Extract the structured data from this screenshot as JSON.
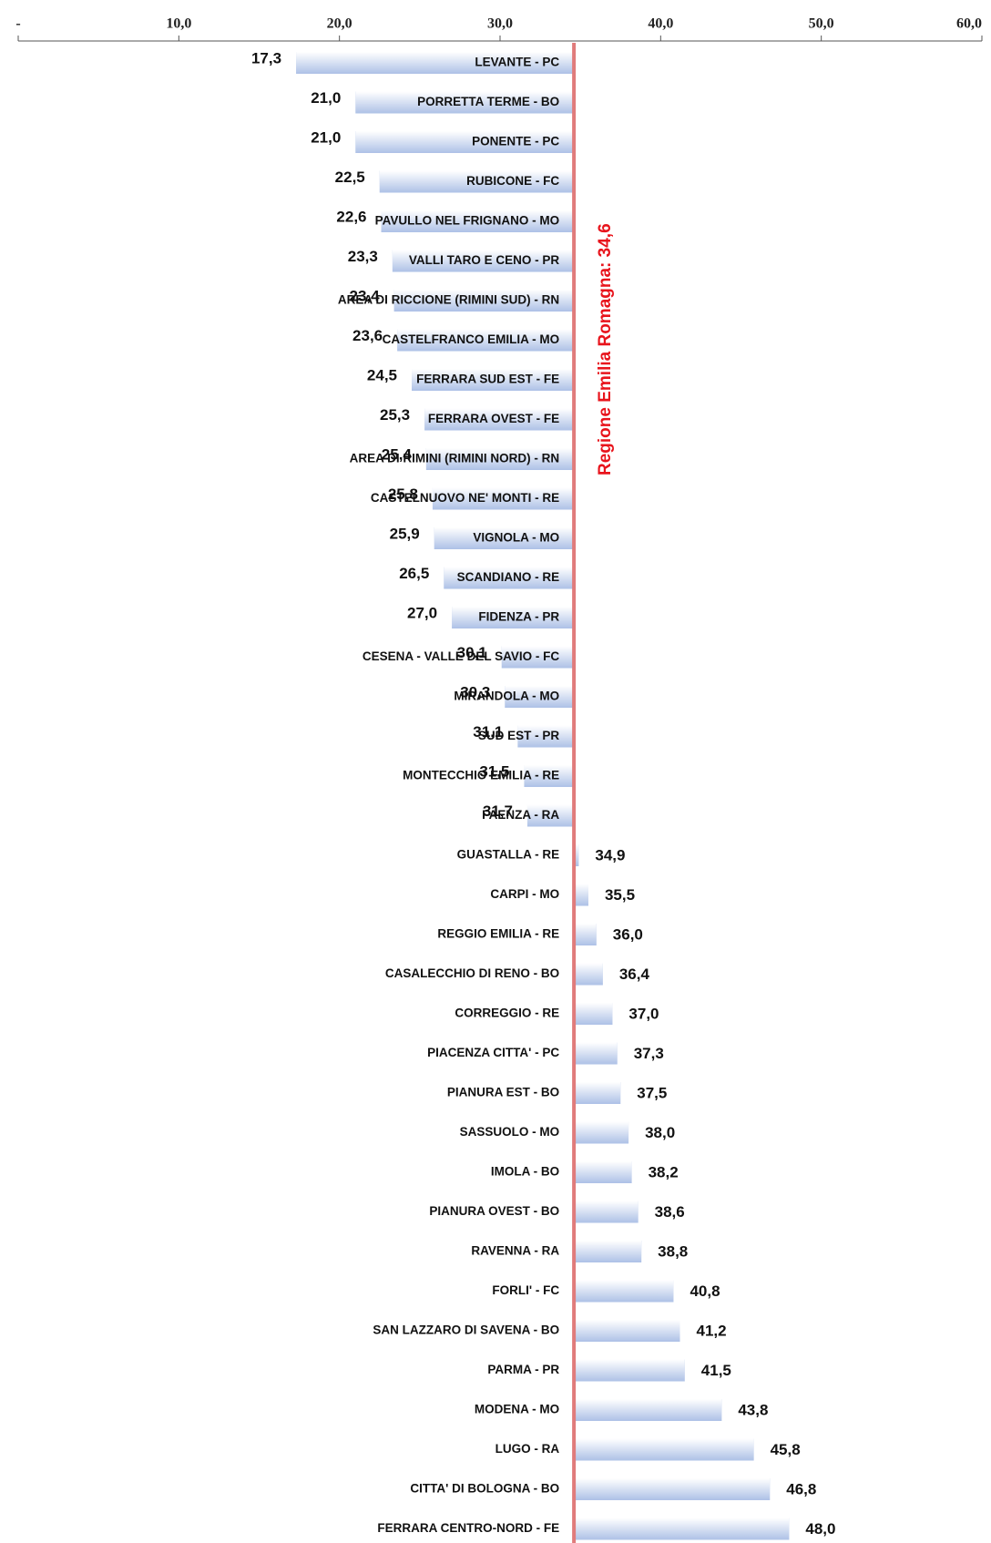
{
  "chart_data": {
    "type": "bar",
    "orientation": "horizontal",
    "categories": [
      "LEVANTE - PC",
      "PORRETTA TERME - BO",
      "PONENTE - PC",
      "RUBICONE - FC",
      "PAVULLO NEL FRIGNANO - MO",
      "VALLI TARO E CENO - PR",
      "AREA DI RICCIONE (RIMINI SUD) - RN",
      "CASTELFRANCO EMILIA - MO",
      "FERRARA SUD EST - FE",
      "FERRARA OVEST - FE",
      "AREA DI RIMINI (RIMINI NORD) - RN",
      "CASTELNUOVO NE' MONTI - RE",
      "VIGNOLA - MO",
      "SCANDIANO - RE",
      "FIDENZA - PR",
      "CESENA - VALLE DEL SAVIO - FC",
      "MIRANDOLA - MO",
      "SUD EST - PR",
      "MONTECCHIO EMILIA - RE",
      "FAENZA - RA",
      "GUASTALLA - RE",
      "CARPI - MO",
      "REGGIO EMILIA - RE",
      "CASALECCHIO DI RENO - BO",
      "CORREGGIO - RE",
      "PIACENZA CITTA' - PC",
      "PIANURA EST - BO",
      "SASSUOLO - MO",
      "IMOLA - BO",
      "PIANURA OVEST - BO",
      "RAVENNA - RA",
      "FORLI' - FC",
      "SAN LAZZARO DI SAVENA - BO",
      "PARMA - PR",
      "MODENA - MO",
      "LUGO - RA",
      "CITTA' DI BOLOGNA - BO",
      "FERRARA CENTRO-NORD - FE"
    ],
    "values": [
      17.3,
      21.0,
      21.0,
      22.5,
      22.6,
      23.3,
      23.4,
      23.6,
      24.5,
      25.3,
      25.4,
      25.8,
      25.9,
      26.5,
      27.0,
      30.1,
      30.3,
      31.1,
      31.5,
      31.7,
      34.9,
      35.5,
      36.0,
      36.4,
      37.0,
      37.3,
      37.5,
      38.0,
      38.2,
      38.6,
      38.8,
      40.8,
      41.2,
      41.5,
      43.8,
      45.8,
      46.8,
      48.0
    ],
    "value_labels": [
      "17,3",
      "21,0",
      "21,0",
      "22,5",
      "22,6",
      "23,3",
      "23,4",
      "23,6",
      "24,5",
      "25,3",
      "25,4",
      "25,8",
      "25,9",
      "26,5",
      "27,0",
      "30,1",
      "30,3",
      "31,1",
      "31,5",
      "31,7",
      "34,9",
      "35,5",
      "36,0",
      "36,4",
      "37,0",
      "37,3",
      "37,5",
      "38,0",
      "38,2",
      "38,6",
      "38,8",
      "40,8",
      "41,2",
      "41,5",
      "43,8",
      "45,8",
      "46,8",
      "48,0"
    ],
    "color": "#9fb6e2",
    "reference": {
      "value": 34.6,
      "label": "Regione Emilia Romagna: 34,6",
      "color": "#e07b7b"
    },
    "xlim": [
      0,
      60
    ],
    "xticks": [
      {
        "value": 0,
        "label": "-"
      },
      {
        "value": 10,
        "label": "10,0"
      },
      {
        "value": 20,
        "label": "20,0"
      },
      {
        "value": 30,
        "label": "30,0"
      },
      {
        "value": 40,
        "label": "40,0"
      },
      {
        "value": 50,
        "label": "50,0"
      },
      {
        "value": 60,
        "label": "60,0"
      }
    ]
  }
}
